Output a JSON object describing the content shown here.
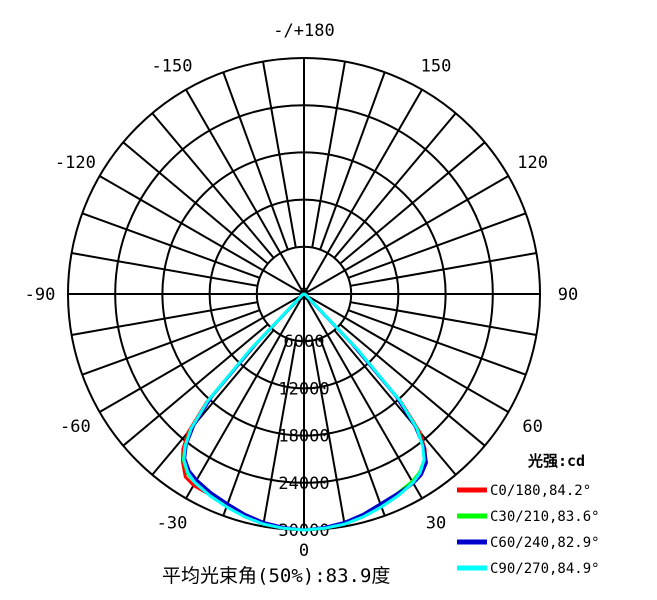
{
  "chart_data": {
    "type": "polar",
    "angle_labels": [
      {
        "deg": 180,
        "text": "-/+180"
      },
      {
        "deg": -150,
        "text": "-150"
      },
      {
        "deg": 150,
        "text": "150"
      },
      {
        "deg": -120,
        "text": "-120"
      },
      {
        "deg": 120,
        "text": "120"
      },
      {
        "deg": -90,
        "text": "-90"
      },
      {
        "deg": 90,
        "text": "90"
      },
      {
        "deg": -60,
        "text": "-60"
      },
      {
        "deg": 60,
        "text": "60"
      },
      {
        "deg": -30,
        "text": "-30"
      },
      {
        "deg": 30,
        "text": "30"
      },
      {
        "deg": 0,
        "text": "0"
      }
    ],
    "radial_ticks": [
      0,
      6000,
      12000,
      18000,
      24000,
      30000
    ],
    "radial_tick_labels": [
      "0",
      "6000",
      "12000",
      "18000",
      "24000",
      "30000"
    ],
    "r_max": 30000,
    "legend_title": "光强:cd",
    "series": [
      {
        "name": "C0/180,84.2°",
        "color": "#ff0000",
        "points": [
          [
            0,
            30000
          ],
          [
            5,
            29900
          ],
          [
            10,
            29700
          ],
          [
            15,
            29300
          ],
          [
            20,
            28700
          ],
          [
            25,
            28200
          ],
          [
            30,
            27800
          ],
          [
            33,
            27300
          ],
          [
            36,
            26300
          ],
          [
            38,
            25000
          ],
          [
            40,
            22900
          ],
          [
            42,
            18500
          ],
          [
            44,
            9500
          ],
          [
            46,
            1600
          ],
          [
            50,
            700
          ],
          [
            60,
            300
          ],
          [
            80,
            100
          ],
          [
            90,
            0
          ]
        ],
        "points_neg": [
          [
            0,
            30000
          ],
          [
            -5,
            29900
          ],
          [
            -10,
            29700
          ],
          [
            -15,
            29300
          ],
          [
            -20,
            28700
          ],
          [
            -25,
            28200
          ],
          [
            -30,
            28100
          ],
          [
            -33,
            27700
          ],
          [
            -36,
            26300
          ],
          [
            -38,
            25000
          ],
          [
            -40,
            22900
          ],
          [
            -42,
            18500
          ],
          [
            -44,
            9500
          ],
          [
            -46,
            1600
          ],
          [
            -50,
            700
          ],
          [
            -60,
            300
          ],
          [
            -80,
            100
          ],
          [
            -90,
            0
          ]
        ]
      },
      {
        "name": "C30/210,83.6°",
        "color": "#00ff00",
        "points": [
          [
            0,
            30000
          ],
          [
            5,
            29900
          ],
          [
            10,
            29600
          ],
          [
            15,
            29100
          ],
          [
            20,
            28500
          ],
          [
            25,
            28000
          ],
          [
            30,
            27500
          ],
          [
            33,
            27000
          ],
          [
            36,
            26000
          ],
          [
            38,
            24600
          ],
          [
            40,
            22400
          ],
          [
            42,
            18000
          ],
          [
            44,
            9000
          ],
          [
            46,
            1500
          ],
          [
            50,
            650
          ],
          [
            60,
            280
          ],
          [
            80,
            90
          ],
          [
            90,
            0
          ]
        ],
        "points_neg": [
          [
            0,
            30000
          ],
          [
            -5,
            29900
          ],
          [
            -10,
            29600
          ],
          [
            -15,
            29100
          ],
          [
            -20,
            28500
          ],
          [
            -25,
            28000
          ],
          [
            -30,
            27700
          ],
          [
            -33,
            27200
          ],
          [
            -36,
            26100
          ],
          [
            -38,
            24600
          ],
          [
            -40,
            22400
          ],
          [
            -42,
            18000
          ],
          [
            -44,
            9000
          ],
          [
            -46,
            1500
          ],
          [
            -50,
            650
          ],
          [
            -60,
            280
          ],
          [
            -80,
            90
          ],
          [
            -90,
            0
          ]
        ]
      },
      {
        "name": "C60/240,82.9°",
        "color": "#0000cc",
        "points": [
          [
            0,
            30000
          ],
          [
            5,
            29800
          ],
          [
            10,
            29500
          ],
          [
            15,
            29000
          ],
          [
            20,
            28400
          ],
          [
            25,
            28000
          ],
          [
            30,
            27800
          ],
          [
            33,
            27400
          ],
          [
            36,
            26500
          ],
          [
            38,
            24800
          ],
          [
            40,
            22000
          ],
          [
            42,
            17400
          ],
          [
            44,
            8600
          ],
          [
            46,
            1400
          ],
          [
            50,
            600
          ],
          [
            60,
            260
          ],
          [
            80,
            80
          ],
          [
            90,
            0
          ]
        ],
        "points_neg": [
          [
            0,
            30000
          ],
          [
            -5,
            29800
          ],
          [
            -10,
            29500
          ],
          [
            -15,
            29000
          ],
          [
            -20,
            28400
          ],
          [
            -25,
            27900
          ],
          [
            -30,
            27300
          ],
          [
            -33,
            26800
          ],
          [
            -36,
            25800
          ],
          [
            -38,
            24300
          ],
          [
            -40,
            21800
          ],
          [
            -42,
            17400
          ],
          [
            -44,
            8600
          ],
          [
            -46,
            1400
          ],
          [
            -50,
            600
          ],
          [
            -60,
            260
          ],
          [
            -80,
            80
          ],
          [
            -90,
            0
          ]
        ]
      },
      {
        "name": "C90/270,84.9°",
        "color": "#00ffff",
        "points": [
          [
            0,
            30000
          ],
          [
            5,
            29900
          ],
          [
            10,
            29700
          ],
          [
            15,
            29300
          ],
          [
            20,
            28800
          ],
          [
            25,
            28300
          ],
          [
            30,
            27700
          ],
          [
            33,
            27100
          ],
          [
            36,
            26000
          ],
          [
            38,
            24500
          ],
          [
            40,
            22300
          ],
          [
            42,
            18300
          ],
          [
            44,
            9800
          ],
          [
            46,
            1800
          ],
          [
            50,
            750
          ],
          [
            60,
            320
          ],
          [
            80,
            110
          ],
          [
            90,
            0
          ]
        ],
        "points_neg": [
          [
            0,
            30000
          ],
          [
            -5,
            29900
          ],
          [
            -10,
            29700
          ],
          [
            -15,
            29300
          ],
          [
            -20,
            28800
          ],
          [
            -25,
            28300
          ],
          [
            -30,
            27700
          ],
          [
            -33,
            27100
          ],
          [
            -36,
            26000
          ],
          [
            -38,
            24500
          ],
          [
            -40,
            22300
          ],
          [
            -42,
            18300
          ],
          [
            -44,
            9800
          ],
          [
            -46,
            1800
          ],
          [
            -50,
            750
          ],
          [
            -60,
            320
          ],
          [
            -80,
            110
          ],
          [
            -90,
            0
          ]
        ]
      }
    ]
  },
  "footer": {
    "text": "平均光束角(50%):83.9度"
  }
}
